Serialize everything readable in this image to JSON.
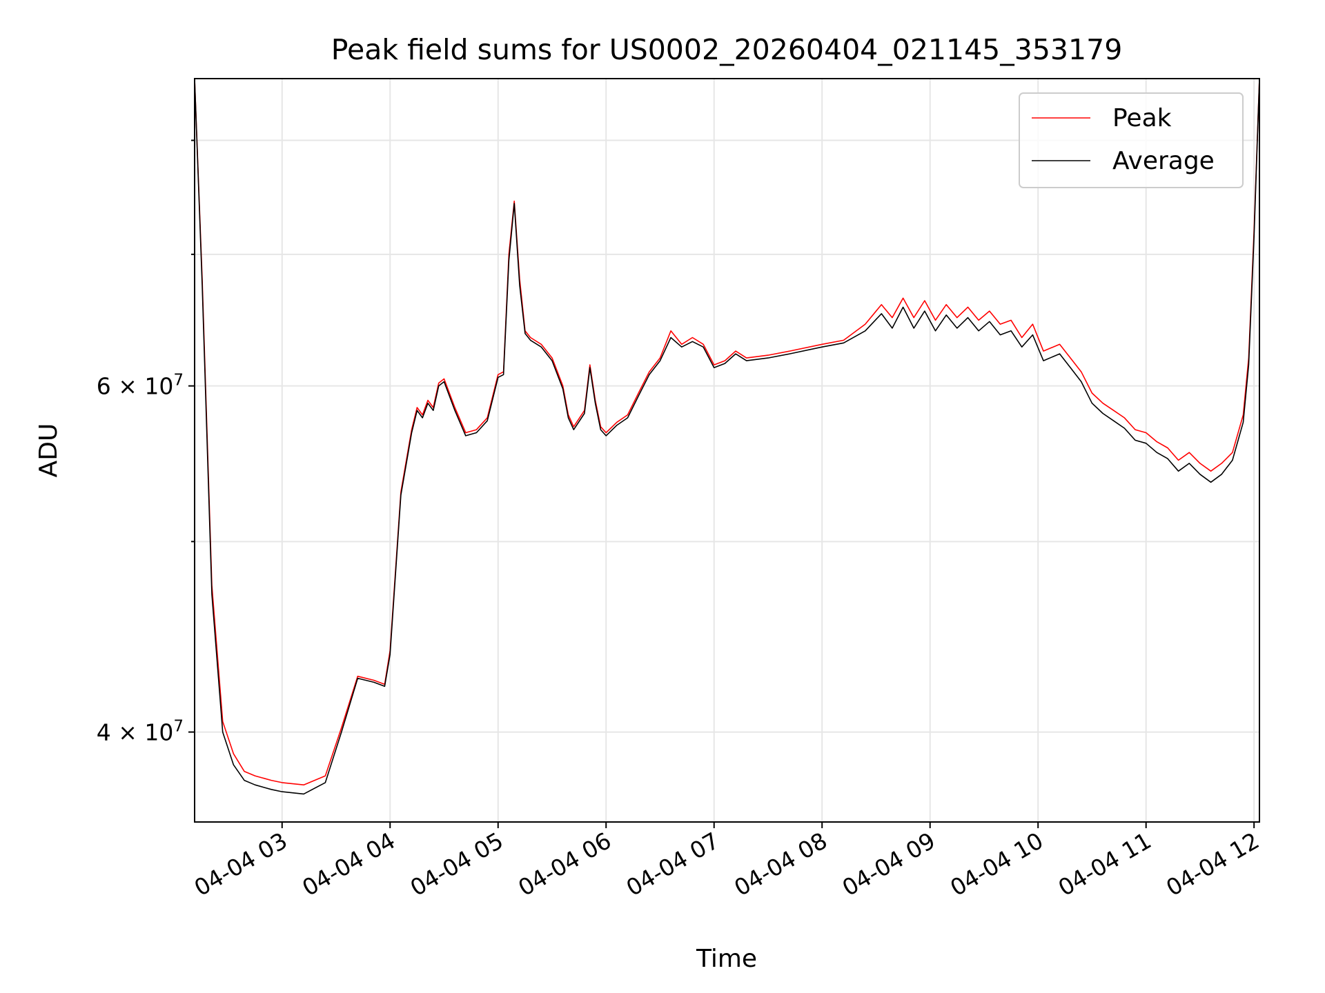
{
  "chart_data": {
    "type": "line",
    "title": "Peak field sums for US0002_20260404_021145_353179",
    "xlabel": "Time",
    "ylabel": "ADU",
    "yscale": "log",
    "grid": true,
    "legend_position": "top-right",
    "xlim": [
      2.19,
      12.05
    ],
    "ylim": [
      36000000,
      86000000
    ],
    "x_unit": "hours since 2026-04-04 00:00",
    "x_ticks": [
      3,
      4,
      5,
      6,
      7,
      8,
      9,
      10,
      11,
      12
    ],
    "x_tick_labels": [
      "04-04 03",
      "04-04 04",
      "04-04 05",
      "04-04 06",
      "04-04 07",
      "04-04 08",
      "04-04 09",
      "04-04 10",
      "04-04 11",
      "04-04 12"
    ],
    "y_major_ticks": [
      40000000,
      60000000
    ],
    "y_major_labels": [
      {
        "mantissa": "4",
        "exp": "7"
      },
      {
        "mantissa": "6",
        "exp": "7"
      }
    ],
    "y_minor_ticks": [
      50000000,
      70000000,
      80000000
    ],
    "x": [
      2.19,
      2.26,
      2.35,
      2.45,
      2.55,
      2.65,
      2.75,
      2.9,
      3.0,
      3.2,
      3.4,
      3.55,
      3.7,
      3.85,
      3.95,
      4.0,
      4.1,
      4.2,
      4.25,
      4.3,
      4.35,
      4.4,
      4.45,
      4.5,
      4.6,
      4.7,
      4.8,
      4.9,
      5.0,
      5.05,
      5.1,
      5.15,
      5.2,
      5.25,
      5.3,
      5.4,
      5.5,
      5.6,
      5.65,
      5.7,
      5.8,
      5.85,
      5.9,
      5.95,
      6.0,
      6.1,
      6.2,
      6.3,
      6.4,
      6.5,
      6.6,
      6.7,
      6.8,
      6.9,
      7.0,
      7.1,
      7.2,
      7.3,
      7.5,
      7.7,
      8.0,
      8.2,
      8.4,
      8.55,
      8.65,
      8.75,
      8.85,
      8.95,
      9.05,
      9.15,
      9.25,
      9.35,
      9.45,
      9.55,
      9.65,
      9.75,
      9.85,
      9.95,
      10.05,
      10.2,
      10.3,
      10.4,
      10.5,
      10.6,
      10.7,
      10.8,
      10.9,
      11.0,
      11.1,
      11.2,
      11.3,
      11.4,
      11.5,
      11.6,
      11.7,
      11.8,
      11.9,
      11.95,
      12.0,
      12.05
    ],
    "series": [
      {
        "name": "Peak",
        "color": "#ff0000",
        "values": [
          86000000,
          68000000,
          47500000,
          40500000,
          39000000,
          38200000,
          38000000,
          37800000,
          37700000,
          37600000,
          38000000,
          40200000,
          42700000,
          42500000,
          42300000,
          44000000,
          53000000,
          57000000,
          58500000,
          58000000,
          59000000,
          58500000,
          60200000,
          60500000,
          58500000,
          56800000,
          57000000,
          57800000,
          60800000,
          61000000,
          70000000,
          74500000,
          68000000,
          64000000,
          63500000,
          63000000,
          62000000,
          60000000,
          58000000,
          57200000,
          58300000,
          61500000,
          59000000,
          57200000,
          56800000,
          57500000,
          58000000,
          59500000,
          61000000,
          62000000,
          64000000,
          63000000,
          63500000,
          63000000,
          61500000,
          61800000,
          62500000,
          62000000,
          62200000,
          62500000,
          63000000,
          63300000,
          64500000,
          66000000,
          65000000,
          66500000,
          65000000,
          66300000,
          64800000,
          66000000,
          65000000,
          65800000,
          64800000,
          65500000,
          64500000,
          64800000,
          63500000,
          64500000,
          62500000,
          63000000,
          62000000,
          61000000,
          59500000,
          58800000,
          58300000,
          57800000,
          57000000,
          56800000,
          56200000,
          55800000,
          55000000,
          55500000,
          54800000,
          54300000,
          54800000,
          55500000,
          58000000,
          62000000,
          72000000,
          86000000
        ]
      },
      {
        "name": "Average",
        "color": "#000000",
        "values": [
          86000000,
          67500000,
          47000000,
          40000000,
          38500000,
          37800000,
          37600000,
          37400000,
          37300000,
          37200000,
          37700000,
          40000000,
          42600000,
          42400000,
          42200000,
          43800000,
          52800000,
          56800000,
          58300000,
          57800000,
          58800000,
          58300000,
          60000000,
          60300000,
          58300000,
          56600000,
          56800000,
          57600000,
          60600000,
          60800000,
          69500000,
          74300000,
          67500000,
          63800000,
          63300000,
          62800000,
          61800000,
          59800000,
          57800000,
          57000000,
          58100000,
          61300000,
          58800000,
          57000000,
          56600000,
          57300000,
          57800000,
          59300000,
          60800000,
          61800000,
          63500000,
          62800000,
          63200000,
          62800000,
          61300000,
          61600000,
          62300000,
          61800000,
          62000000,
          62300000,
          62800000,
          63100000,
          64000000,
          65300000,
          64200000,
          65800000,
          64200000,
          65500000,
          64000000,
          65200000,
          64200000,
          65000000,
          64000000,
          64700000,
          63700000,
          64000000,
          62800000,
          63700000,
          61800000,
          62300000,
          61300000,
          60300000,
          58800000,
          58100000,
          57600000,
          57100000,
          56300000,
          56100000,
          55500000,
          55100000,
          54300000,
          54800000,
          54100000,
          53600000,
          54100000,
          55000000,
          57500000,
          61500000,
          71500000,
          86000000
        ]
      }
    ]
  }
}
